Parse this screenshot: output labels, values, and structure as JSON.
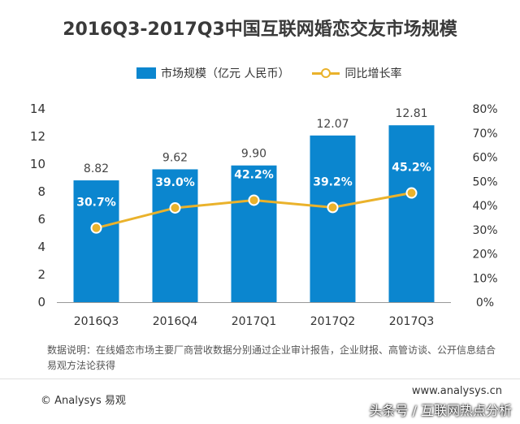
{
  "chart_data": {
    "type": "bar",
    "title": "2016Q3-2017Q3中国互联网婚恋交友市场规模",
    "categories": [
      "2016Q3",
      "2016Q4",
      "2017Q1",
      "2017Q2",
      "2017Q3"
    ],
    "series": [
      {
        "name": "市场规模（亿元 人民币）",
        "type": "bar",
        "axis": "left",
        "values": [
          8.82,
          9.62,
          9.9,
          12.07,
          12.81
        ],
        "labels": [
          "8.82",
          "9.62",
          "9.90",
          "12.07",
          "12.81"
        ],
        "color": "#0b86cf"
      },
      {
        "name": "同比增长率",
        "type": "line",
        "axis": "right",
        "values": [
          30.7,
          39.0,
          42.2,
          39.2,
          45.2
        ],
        "labels": [
          "30.7%",
          "39.0%",
          "42.2%",
          "39.2%",
          "45.2%"
        ],
        "color": "#eab22b"
      }
    ],
    "y_left": {
      "min": 0,
      "max": 14,
      "ticks": [
        "0",
        "2",
        "4",
        "6",
        "8",
        "10",
        "12",
        "14"
      ]
    },
    "y_right": {
      "min": 0,
      "max": 80,
      "ticks": [
        "0%",
        "10%",
        "20%",
        "30%",
        "40%",
        "50%",
        "60%",
        "70%",
        "80%"
      ]
    },
    "grid": false,
    "legend_position": "top"
  },
  "legend": {
    "bar_label": "市场规模（亿元 人民币）",
    "line_label": "同比增长率"
  },
  "note_text": "数据说明：在线婚恋市场主要厂商营收数据分别通过企业审计报告，企业财报、高管访谈、公开信息结合易观方法论获得",
  "copyright": "© Analysys 易观",
  "site": "www.analysys.cn",
  "watermark": "头条号 / 互联网热点分析"
}
